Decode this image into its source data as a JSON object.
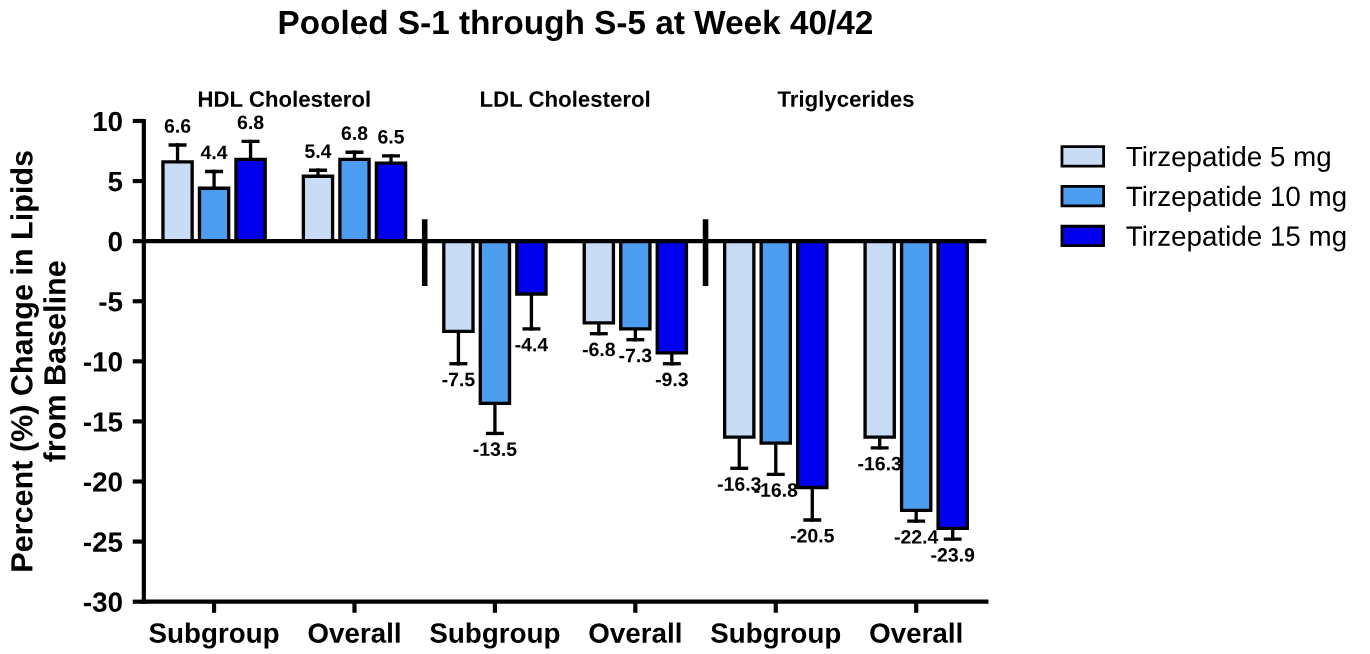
{
  "chart_data": {
    "type": "bar",
    "title": "Pooled S-1 through S-5 at Week 40/42",
    "ylabel": "Percent (%) Change in Lipids\nfrom Baseline",
    "categories": [
      "Subgroup",
      "Overall",
      "Subgroup",
      "Overall",
      "Subgroup",
      "Overall"
    ],
    "series": [
      {
        "name": "Tirzepatide 5 mg",
        "color": "#c9dcf5",
        "values": [
          6.6,
          5.4,
          -7.5,
          -6.8,
          -16.3,
          -16.3
        ],
        "errors": [
          [
            6.6,
            8.0
          ],
          [
            5.4,
            5.9
          ],
          [
            -10.2,
            -7.5
          ],
          [
            -7.7,
            -6.8
          ],
          [
            -18.9,
            -16.3
          ],
          [
            -17.2,
            -16.3
          ]
        ]
      },
      {
        "name": "Tirzepatide 10 mg",
        "color": "#4c9cf0",
        "values": [
          4.4,
          6.8,
          -13.5,
          -7.3,
          -16.8,
          -22.4
        ],
        "errors": [
          [
            4.4,
            5.8
          ],
          [
            6.8,
            7.4
          ],
          [
            -16.0,
            -13.5
          ],
          [
            -8.2,
            -7.3
          ],
          [
            -19.4,
            -16.8
          ],
          [
            -23.3,
            -22.4
          ]
        ]
      },
      {
        "name": "Tirzepatide 15 mg",
        "color": "#0000ee",
        "values": [
          6.8,
          6.5,
          -4.4,
          -9.3,
          -20.5,
          -23.9
        ],
        "errors": [
          [
            6.8,
            8.3
          ],
          [
            6.5,
            7.1
          ],
          [
            -7.3,
            -4.4
          ],
          [
            -10.2,
            -9.3
          ],
          [
            -23.2,
            -20.5
          ],
          [
            -24.8,
            -23.9
          ]
        ]
      }
    ],
    "annotations": [
      "HDL Cholesterol",
      "LDL Cholesterol",
      "Triglycerides"
    ],
    "ylim": [
      -30,
      10
    ],
    "yticks": [
      -30,
      -25,
      -20,
      -15,
      -10,
      -5,
      0,
      5,
      10
    ],
    "ref_lines": [
      {
        "axis": "y",
        "value": 0
      }
    ],
    "data_labels": true,
    "grid": false,
    "legend": "right"
  }
}
